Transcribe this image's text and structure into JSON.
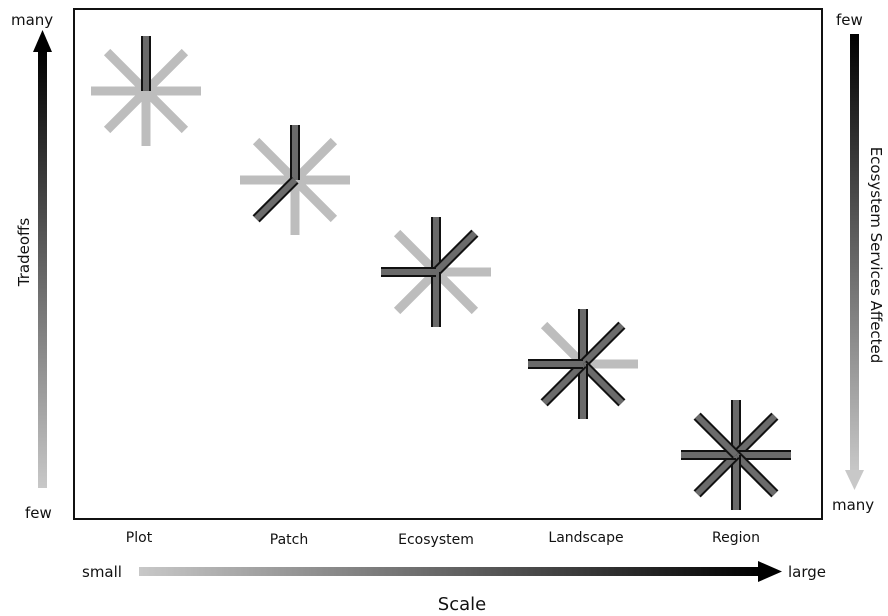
{
  "left_axis": {
    "label": "Tradeoffs",
    "top_label": "many",
    "bottom_label": "few"
  },
  "right_axis": {
    "label": "Ecosystem Services Affected",
    "top_label": "few",
    "bottom_label": "many"
  },
  "bottom_axis": {
    "label": "Scale",
    "start_label": "small",
    "end_label": "large"
  },
  "scale_levels": [
    {
      "name": "Plot"
    },
    {
      "name": "Patch"
    },
    {
      "name": "Ecosystem"
    },
    {
      "name": "Landscape"
    },
    {
      "name": "Region"
    }
  ],
  "colors": {
    "light_spoke": "#bdbdbd",
    "dark_spoke": "#6b6b6b",
    "outline": "#111111"
  }
}
